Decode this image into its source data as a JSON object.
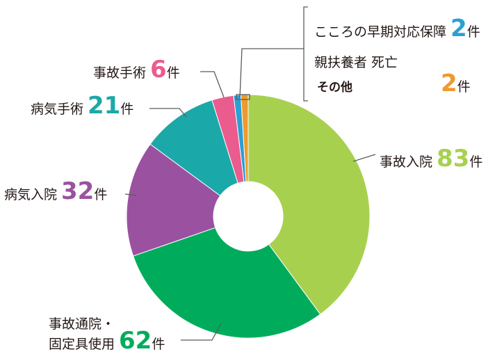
{
  "unit": "件",
  "colors": {
    "accident_hosp": "#a8d04f",
    "accident_outpatient": "#00ac5c",
    "illness_hosp": "#9a52a0",
    "illness_surgery": "#1ba8a8",
    "accident_surgery": "#ea5b8e",
    "mental": "#2ba0d2",
    "other": "#ee9a2e"
  },
  "chart_data": {
    "type": "pie",
    "donut": true,
    "categories": [
      "事故入院",
      "事故通院・固定具使用",
      "病気入院",
      "病気手術",
      "事故手術",
      "こころの早期対応保障",
      "親扶養者 死亡",
      "その他"
    ],
    "values": [
      83,
      62,
      32,
      21,
      6,
      2,
      0,
      2
    ],
    "labels": {
      "accident_hosp": "事故入院",
      "accident_outpatient_line1": "事故通院・",
      "accident_outpatient_line2": "固定具使用",
      "illness_hosp": "病気入院",
      "illness_surgery": "病気手術",
      "accident_surgery": "事故手術",
      "mental": "こころの早期対応保障",
      "parent_death": "親扶養者 死亡",
      "other": "その他"
    },
    "value_labels": {
      "accident_hosp": "83",
      "accident_outpatient": "62",
      "illness_hosp": "32",
      "illness_surgery": "21",
      "accident_surgery": "6",
      "mental": "2",
      "other": "2"
    }
  }
}
